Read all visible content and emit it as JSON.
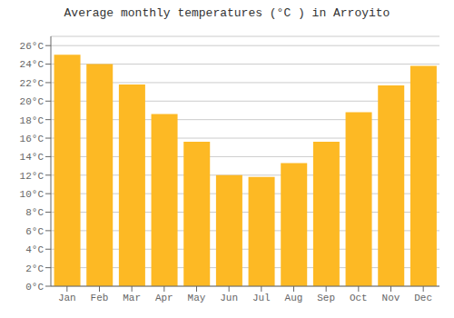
{
  "chart_data": {
    "type": "bar",
    "title": "Average monthly temperatures (°C ) in Arroyito",
    "categories": [
      "Jan",
      "Feb",
      "Mar",
      "Apr",
      "May",
      "Jun",
      "Jul",
      "Aug",
      "Sep",
      "Oct",
      "Nov",
      "Dec"
    ],
    "values": [
      25.0,
      24.0,
      21.8,
      18.6,
      15.6,
      12.0,
      11.8,
      13.3,
      15.6,
      18.8,
      21.7,
      23.8
    ],
    "color": "#FDB924",
    "ylim": [
      0,
      27
    ],
    "yticks": [
      {
        "value": 0,
        "label": "0°C"
      },
      {
        "value": 2,
        "label": "2°C"
      },
      {
        "value": 4,
        "label": "4°C"
      },
      {
        "value": 6,
        "label": "6°C"
      },
      {
        "value": 8,
        "label": "8°C"
      },
      {
        "value": 10,
        "label": "10°C"
      },
      {
        "value": 12,
        "label": "12°C"
      },
      {
        "value": 14,
        "label": "14°C"
      },
      {
        "value": 16,
        "label": "16°C"
      },
      {
        "value": 18,
        "label": "18°C"
      },
      {
        "value": 20,
        "label": "20°C"
      },
      {
        "value": 22,
        "label": "22°C"
      },
      {
        "value": 24,
        "label": "24°C"
      },
      {
        "value": 26,
        "label": "26°C"
      }
    ],
    "grid": true
  }
}
